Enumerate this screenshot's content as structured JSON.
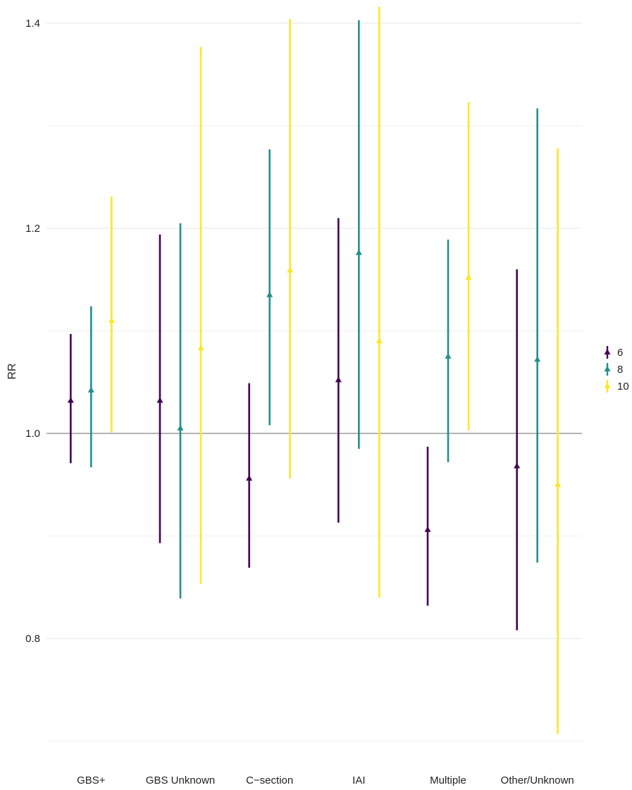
{
  "chart_data": {
    "type": "errorbar",
    "title": "",
    "xlabel": "",
    "ylabel": "RR",
    "ylim": [
      0.7,
      1.42
    ],
    "y_ticks": [
      "0.8",
      "1.0",
      "1.2",
      "1.4"
    ],
    "reference_line": 1.0,
    "grid": true,
    "legend_position": "right",
    "categories": [
      "GBS+",
      "GBS Unknown",
      "C−section",
      "IAI",
      "Multiple",
      "Other/Unknown"
    ],
    "series": [
      {
        "name": "6",
        "color": "#440154",
        "estimate": [
          1.032,
          1.032,
          0.956,
          1.052,
          0.906,
          0.968
        ],
        "lower": [
          0.971,
          0.893,
          0.869,
          0.913,
          0.832,
          0.808
        ],
        "upper": [
          1.097,
          1.194,
          1.049,
          1.21,
          0.987,
          1.16
        ]
      },
      {
        "name": "8",
        "color": "#21908C",
        "estimate": [
          1.042,
          1.005,
          1.135,
          1.176,
          1.075,
          1.072
        ],
        "lower": [
          0.967,
          0.839,
          1.008,
          0.985,
          0.972,
          0.874
        ],
        "upper": [
          1.124,
          1.205,
          1.277,
          1.403,
          1.189,
          1.317
        ]
      },
      {
        "name": "10",
        "color": "#FDE725",
        "estimate": [
          1.11,
          1.083,
          1.159,
          1.09,
          1.152,
          0.95
        ],
        "lower": [
          1.001,
          0.853,
          0.956,
          0.84,
          1.003,
          0.707
        ],
        "upper": [
          1.231,
          1.377,
          1.404,
          1.416,
          1.323,
          1.278
        ]
      }
    ]
  }
}
